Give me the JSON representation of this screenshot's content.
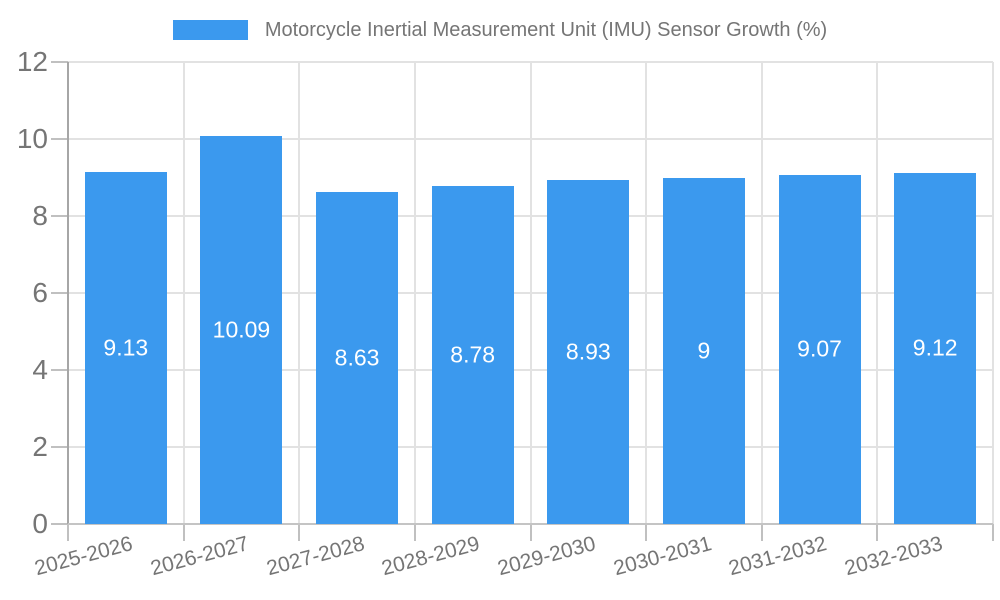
{
  "legend": {
    "label": "Motorcycle Inertial Measurement Unit (IMU) Sensor Growth (%)"
  },
  "colors": {
    "bar": "#3B99EE",
    "grid": "#E2E2E2",
    "axis_y": "#A6A6A6",
    "axis_x": "#C4C4C4",
    "tick": "#C0C0C0",
    "tick_label": "#757575",
    "legend_text": "#757575",
    "value_label": "#FFFFFF",
    "background": "#FFFFFF"
  },
  "chart_data": {
    "type": "bar",
    "title": "Motorcycle Inertial Measurement Unit (IMU) Sensor Growth (%)",
    "categories": [
      "2025-2026",
      "2026-2027",
      "2027-2028",
      "2028-2029",
      "2029-2030",
      "2030-2031",
      "2031-2032",
      "2032-2033"
    ],
    "values": [
      9.13,
      10.09,
      8.63,
      8.78,
      8.93,
      9,
      9.07,
      9.12
    ],
    "value_labels": [
      "9.13",
      "10.09",
      "8.63",
      "8.78",
      "8.93",
      "9",
      "9.07",
      "9.12"
    ],
    "xlabel": "",
    "ylabel": "",
    "ylim": [
      0,
      12
    ],
    "yticks": [
      0,
      2,
      4,
      6,
      8,
      10,
      12
    ],
    "grid": true,
    "legend_position": "top",
    "x_label_rotation_deg": -15,
    "value_label_position": "inside-center"
  }
}
